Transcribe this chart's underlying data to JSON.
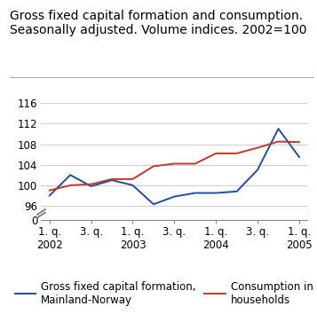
{
  "title": "Gross fixed capital formation and consumption.\nSeasonally adjusted. Volume indices. 2002=100",
  "blue_label": "Gross fixed capital formation,\nMainland-Norway",
  "red_label": "Consumption in\nhouseholds",
  "x_values": [
    0,
    1,
    2,
    3,
    4,
    5,
    6,
    7,
    8,
    9,
    10,
    11,
    12
  ],
  "blue_values": [
    98.0,
    102.0,
    99.8,
    101.0,
    100.0,
    96.3,
    97.8,
    98.5,
    98.5,
    98.8,
    103.0,
    111.0,
    105.5
  ],
  "red_values": [
    99.0,
    100.0,
    100.2,
    101.2,
    101.2,
    103.7,
    104.2,
    104.2,
    106.2,
    106.2,
    107.3,
    108.5,
    108.4
  ],
  "x_tick_positions": [
    0,
    2,
    4,
    6,
    8,
    10,
    12
  ],
  "x_tick_labels": [
    "1. q.\n2002",
    "3. q.",
    "1. q.\n2003",
    "3. q.",
    "1. q.\n2004",
    "3. q.",
    "1. q.\n2005"
  ],
  "ylim_main": [
    94.5,
    116.5
  ],
  "ylim_zero": [
    0,
    2
  ],
  "yticks_main": [
    96,
    100,
    104,
    108,
    112,
    116
  ],
  "ytick_zero": [
    0
  ],
  "blue_color": "#1f4e9e",
  "red_color": "#c0392b",
  "grid_color": "#cccccc",
  "bg_color": "#ffffff",
  "title_fontsize": 10.0,
  "legend_fontsize": 8.5,
  "tick_fontsize": 8.5,
  "xlim": [
    -0.4,
    12.4
  ]
}
